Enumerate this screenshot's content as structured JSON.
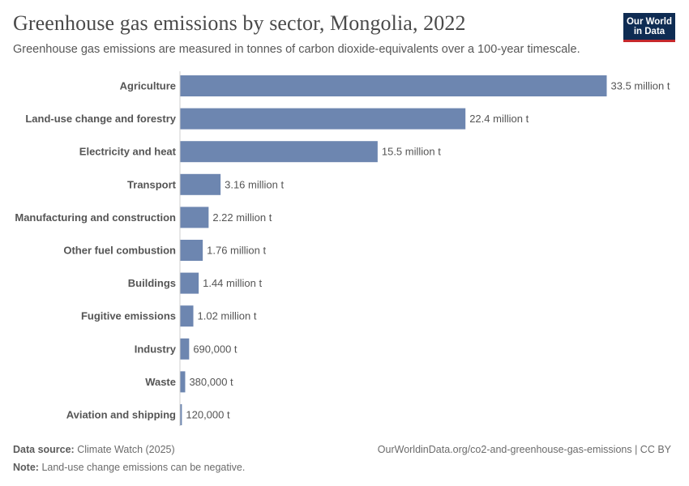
{
  "header": {
    "title": "Greenhouse gas emissions by sector, Mongolia, 2022",
    "subtitle": "Greenhouse gas emissions are measured in tonnes of carbon dioxide-equivalents over a 100-year timescale."
  },
  "logo": {
    "line1": "Our World",
    "line2": "in Data",
    "bg_color": "#0f2c53",
    "accent_color": "#c6282c"
  },
  "footer": {
    "source_label": "Data source:",
    "source_value": "Climate Watch (2025)",
    "note_label": "Note:",
    "note_value": "Land-use change emissions can be negative.",
    "url": "OurWorldinData.org/co2-and-greenhouse-gas-emissions | CC BY"
  },
  "chart_data": {
    "type": "bar",
    "orientation": "horizontal",
    "bar_color": "#6d86b0",
    "categories": [
      "Agriculture",
      "Land-use change and forestry",
      "Electricity and heat",
      "Transport",
      "Manufacturing and construction",
      "Other fuel combustion",
      "Buildings",
      "Fugitive emissions",
      "Industry",
      "Waste",
      "Aviation and shipping"
    ],
    "values": [
      33500000,
      22400000,
      15500000,
      3160000,
      2220000,
      1760000,
      1440000,
      1020000,
      690000,
      380000,
      120000
    ],
    "value_labels": [
      "33.5 million t",
      "22.4 million t",
      "15.5 million t",
      "3.16 million t",
      "2.22 million t",
      "1.76 million t",
      "1.44 million t",
      "1.02 million t",
      "690,000 t",
      "380,000 t",
      "120,000 t"
    ],
    "xlim": [
      0,
      33500000
    ],
    "grid": false
  }
}
